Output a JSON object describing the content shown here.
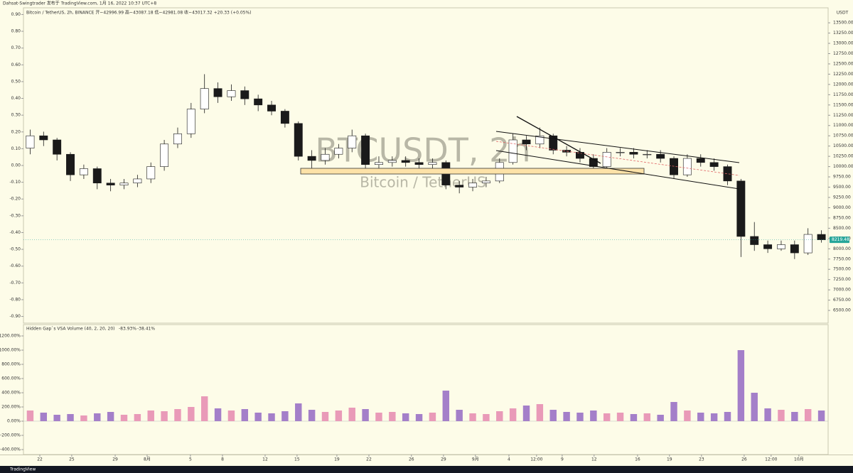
{
  "header": "Dahsat-Swingtrader 发布于 TradingView.com, 1月 16, 2022 10:37 UTC+8",
  "footer": "TradingView",
  "chart_data": [
    {
      "type": "candlestick",
      "title": "Bitcoin / TetherUS, 2h, BINANCE  开~42996.99  高~43087.18  低~42981.08  收~43017.32  +20.33 (+0.05%)",
      "watermark": "BTCUSDT, 2h",
      "watermark_subtitle": "Bitcoin / TetherUS",
      "currency": "USDT",
      "up_color": "#ffffff",
      "down_color": "#1a1a1a",
      "wick_color": "#1a1a1a",
      "xlim": [
        -0.5,
        59.5
      ],
      "xticks": [
        {
          "value": 0.72,
          "label": "22"
        },
        {
          "value": 3.1,
          "label": "25"
        },
        {
          "value": 6.34,
          "label": "29"
        },
        {
          "value": 8.72,
          "label": "8月"
        },
        {
          "value": 11.95,
          "label": "5"
        },
        {
          "value": 14.34,
          "label": "8"
        },
        {
          "value": 17.52,
          "label": "12"
        },
        {
          "value": 19.9,
          "label": "15"
        },
        {
          "value": 22.87,
          "label": "19"
        },
        {
          "value": 25.26,
          "label": "22"
        },
        {
          "value": 28.43,
          "label": "26"
        },
        {
          "value": 30.82,
          "label": "29"
        },
        {
          "value": 33.2,
          "label": "9月"
        },
        {
          "value": 35.7,
          "label": "4"
        },
        {
          "value": 37.76,
          "label": "12:00"
        },
        {
          "value": 39.67,
          "label": "9"
        },
        {
          "value": 42.05,
          "label": "12"
        },
        {
          "value": 45.29,
          "label": "16"
        },
        {
          "value": 47.67,
          "label": "19"
        },
        {
          "value": 50.06,
          "label": "23"
        },
        {
          "value": 53.24,
          "label": "26"
        },
        {
          "value": 55.25,
          "label": "12:00"
        },
        {
          "value": 57.32,
          "label": "10月"
        }
      ],
      "open": [
        10450,
        10750,
        10650,
        10300,
        9800,
        9950,
        9600,
        9550,
        9600,
        9700,
        10000,
        10550,
        10800,
        11400,
        11900,
        11700,
        11850,
        11650,
        11500,
        11350,
        11050,
        10250,
        10150,
        10300,
        10450,
        10750,
        10050,
        10100,
        10150,
        10100,
        10050,
        10100,
        9550,
        9500,
        9600,
        9650,
        10100,
        10650,
        10550,
        10750,
        10400,
        10350,
        10200,
        10000,
        10350,
        10350,
        10300,
        10300,
        10200,
        9800,
        10200,
        10100,
        10000,
        9650,
        8300,
        8100,
        8000,
        8100,
        7900,
        8350
      ],
      "high": [
        10900,
        10850,
        10700,
        10350,
        10050,
        10000,
        9700,
        9700,
        9800,
        10100,
        10650,
        10950,
        11550,
        12250,
        12050,
        12000,
        11950,
        11750,
        11600,
        11400,
        11100,
        10400,
        10450,
        10550,
        10900,
        10800,
        10250,
        10250,
        10250,
        10200,
        10200,
        10150,
        9650,
        9700,
        9750,
        10200,
        10800,
        10750,
        10950,
        10800,
        10500,
        10450,
        10300,
        10450,
        10450,
        10450,
        10400,
        10400,
        10250,
        10300,
        10300,
        10200,
        10050,
        9700,
        8650,
        8200,
        8200,
        8200,
        8500,
        8450
      ],
      "low": [
        10300,
        10500,
        10150,
        9650,
        9700,
        9450,
        9400,
        9450,
        9500,
        9600,
        9900,
        10450,
        10700,
        11300,
        11550,
        11600,
        11500,
        11350,
        11250,
        10950,
        10150,
        9950,
        10050,
        10200,
        10350,
        9950,
        9950,
        10000,
        10000,
        9950,
        9950,
        9450,
        9350,
        9400,
        9500,
        9600,
        10050,
        10400,
        10450,
        10300,
        10250,
        10100,
        9950,
        9950,
        10250,
        10200,
        10200,
        10100,
        9700,
        9750,
        10000,
        9900,
        9550,
        7800,
        7950,
        7900,
        7950,
        7750,
        7850,
        8150
      ],
      "close": [
        10750,
        10650,
        10300,
        9800,
        9950,
        9600,
        9550,
        9600,
        9700,
        10000,
        10550,
        10800,
        11400,
        11900,
        11700,
        11850,
        11650,
        11500,
        11350,
        11050,
        10250,
        10150,
        10300,
        10450,
        10750,
        10050,
        10100,
        10150,
        10100,
        10050,
        10100,
        9550,
        9500,
        9600,
        9650,
        10100,
        10650,
        10550,
        10750,
        10400,
        10350,
        10200,
        10000,
        10350,
        10350,
        10300,
        10300,
        10200,
        9800,
        10200,
        10100,
        10000,
        9650,
        8300,
        8100,
        8000,
        8100,
        7900,
        8350,
        8219.48
      ],
      "last_price": 8219.48,
      "last_price_color": "#26a69a",
      "ylim": [
        6190,
        13865
      ],
      "yticks": [
        {
          "value": 6500,
          "label": "6500.00"
        },
        {
          "value": 6750,
          "label": "6750.00"
        },
        {
          "value": 7000,
          "label": "7000.00"
        },
        {
          "value": 7250,
          "label": "7250.00"
        },
        {
          "value": 7500,
          "label": "7500.00"
        },
        {
          "value": 7750,
          "label": "7750.00"
        },
        {
          "value": 8000,
          "label": "8000.00"
        },
        {
          "value": 8250,
          "label": "8250.00"
        },
        {
          "value": 8500,
          "label": "8500.00"
        },
        {
          "value": 8750,
          "label": "8750.00"
        },
        {
          "value": 9000,
          "label": "9000.00"
        },
        {
          "value": 9250,
          "label": "9250.00"
        },
        {
          "value": 9500,
          "label": "9500.00"
        },
        {
          "value": 9750,
          "label": "9750.00"
        },
        {
          "value": 10000,
          "label": "10000.00"
        },
        {
          "value": 10250,
          "label": "10250.00"
        },
        {
          "value": 10500,
          "label": "10500.00"
        },
        {
          "value": 10750,
          "label": "10750.00"
        },
        {
          "value": 11000,
          "label": "11000.00"
        },
        {
          "value": 11250,
          "label": "11250.00"
        },
        {
          "value": 11500,
          "label": "11500.00"
        },
        {
          "value": 11750,
          "label": "11750.00"
        },
        {
          "value": 12000,
          "label": "12000.00"
        },
        {
          "value": 12250,
          "label": "12250.00"
        },
        {
          "value": 12500,
          "label": "12500.00"
        },
        {
          "value": 12750,
          "label": "12750.00"
        },
        {
          "value": 13000,
          "label": "13000.00"
        },
        {
          "value": 13250,
          "label": "13250.00"
        },
        {
          "value": 13500,
          "label": "13500.00"
        }
      ],
      "y2lim": [
        -0.94,
        0.94
      ],
      "y2ticks": [
        {
          "value": 0.9,
          "label": "0.90"
        },
        {
          "value": 0.8,
          "label": "0.80"
        },
        {
          "value": 0.7,
          "label": "0.70"
        },
        {
          "value": 0.6,
          "label": "0.60"
        },
        {
          "value": 0.5,
          "label": "0.50"
        },
        {
          "value": 0.4,
          "label": "0.40"
        },
        {
          "value": 0.3,
          "label": "0.30"
        },
        {
          "value": 0.2,
          "label": "0.20"
        },
        {
          "value": 0.1,
          "label": "0.10"
        },
        {
          "value": 0,
          "label": "0.00"
        },
        {
          "value": -0.1,
          "label": "-0.10"
        },
        {
          "value": -0.2,
          "label": "-0.20"
        },
        {
          "value": -0.3,
          "label": "-0.30"
        },
        {
          "value": -0.4,
          "label": "-0.40"
        },
        {
          "value": -0.5,
          "label": "-0.50"
        },
        {
          "value": -0.6,
          "label": "-0.60"
        },
        {
          "value": -0.7,
          "label": "-0.70"
        },
        {
          "value": -0.8,
          "label": "-0.80"
        },
        {
          "value": -0.9,
          "label": "-0.90"
        }
      ]
    },
    {
      "type": "bar",
      "title": "Hidden Gap`s VSA Volume (40, 2, 20, 20)",
      "readings": [
        "-83.93%",
        "-38.41%"
      ],
      "up_color": "#e99ab8",
      "down_color": "#a47fc9",
      "values": [
        150,
        120,
        90,
        100,
        80,
        110,
        130,
        90,
        100,
        150,
        140,
        170,
        200,
        350,
        180,
        150,
        170,
        120,
        110,
        140,
        250,
        160,
        130,
        150,
        190,
        170,
        120,
        130,
        110,
        100,
        120,
        430,
        160,
        110,
        100,
        140,
        180,
        220,
        240,
        160,
        130,
        120,
        150,
        110,
        120,
        100,
        110,
        90,
        270,
        150,
        120,
        110,
        130,
        1000,
        400,
        180,
        160,
        130,
        170,
        150
      ],
      "ylim": [
        -470,
        1360
      ],
      "yticks": [
        {
          "value": 1200,
          "label": "1200.00%"
        },
        {
          "value": 1000,
          "label": "1000.00%"
        },
        {
          "value": 800,
          "label": "800.00%"
        },
        {
          "value": 600,
          "label": "600.00%"
        },
        {
          "value": 400,
          "label": "400.00%"
        },
        {
          "value": 200,
          "label": "200.00%"
        },
        {
          "value": 0,
          "label": "0.00%"
        },
        {
          "value": -200,
          "label": "-200.00%"
        },
        {
          "value": -400,
          "label": "-400.00%"
        }
      ]
    }
  ]
}
